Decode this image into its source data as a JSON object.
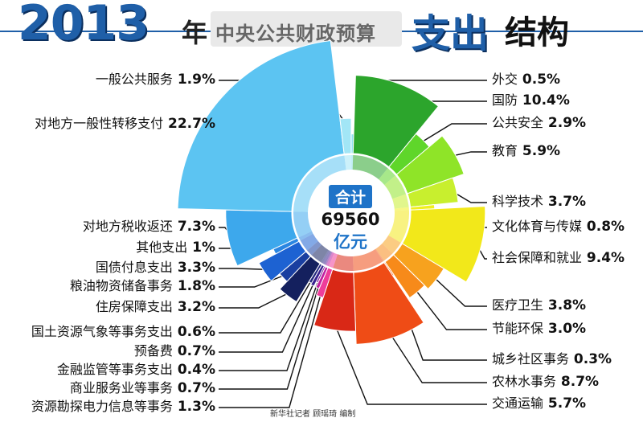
{
  "title": {
    "year": "2013",
    "nian": "年",
    "subtitle": "中央公共财政预算",
    "main_part1": "支出",
    "main_part2": "结构"
  },
  "center": {
    "label": "合计",
    "value": "69560",
    "unit": "亿元"
  },
  "credit": "新华社记者 顾瑶琦 编制",
  "chart_data": {
    "type": "pie",
    "variant": "rose-donut",
    "title": "2013年中央公共财政预算支出结构",
    "total": 69560,
    "total_unit": "亿元",
    "unit": "%",
    "slices": [
      {
        "name": "外交",
        "text": "0.5%",
        "value": 0.5,
        "color": "#8fe0f0"
      },
      {
        "name": "国防",
        "text": "10.4%",
        "value": 10.4,
        "color": "#2ca52c"
      },
      {
        "name": "公共安全",
        "text": "2.9%",
        "value": 2.9,
        "color": "#5fd62a"
      },
      {
        "name": "教育",
        "text": "5.9%",
        "value": 5.9,
        "color": "#8fe428"
      },
      {
        "name": "科学技术",
        "text": "3.7%",
        "value": 3.7,
        "color": "#c8ef2e"
      },
      {
        "name": "文化体育与传媒",
        "text": "0.8%",
        "value": 0.8,
        "color": "#f0f020"
      },
      {
        "name": "社会保障和就业",
        "text": "9.4%",
        "value": 9.4,
        "color": "#f2e81a"
      },
      {
        "name": "医疗卫生",
        "text": "3.8%",
        "value": 3.8,
        "color": "#f7a21e"
      },
      {
        "name": "节能环保",
        "text": "3.0%",
        "value": 3.0,
        "color": "#f78a1a"
      },
      {
        "name": "城乡社区事务",
        "text": "0.3%",
        "value": 0.3,
        "color": "#f26a1a"
      },
      {
        "name": "农林水事务",
        "text": "8.7%",
        "value": 8.7,
        "color": "#ef4c16"
      },
      {
        "name": "交通运输",
        "text": "5.7%",
        "value": 5.7,
        "color": "#d92816"
      },
      {
        "name": "资源勘探电力信息等事务",
        "text": "1.3%",
        "value": 1.3,
        "color": "#ee3d9a"
      },
      {
        "name": "商业服务业等事务",
        "text": "0.7%",
        "value": 0.7,
        "color": "#c020a0"
      },
      {
        "name": "金融监管等事务支出",
        "text": "0.4%",
        "value": 0.4,
        "color": "#7a1f9a"
      },
      {
        "name": "预备费",
        "text": "0.7%",
        "value": 0.7,
        "color": "#3a2390"
      },
      {
        "name": "国土资源气象等事务支出",
        "text": "0.6%",
        "value": 0.6,
        "color": "#262a80"
      },
      {
        "name": "住房保障支出",
        "text": "3.2%",
        "value": 3.2,
        "color": "#14205e"
      },
      {
        "name": "粮油物资储备事务",
        "text": "1.8%",
        "value": 1.8,
        "color": "#1a3fa0"
      },
      {
        "name": "国债付息支出",
        "text": "3.3%",
        "value": 3.3,
        "color": "#1d62d2"
      },
      {
        "name": "其他支出",
        "text": "1%",
        "value": 1.0,
        "color": "#2a86e2"
      },
      {
        "name": "对地方税收返还",
        "text": "7.3%",
        "value": 7.3,
        "color": "#3da8ec"
      },
      {
        "name": "对地方一般性转移支付",
        "text": "22.7%",
        "value": 22.7,
        "color": "#5cc4f2"
      },
      {
        "name": "一般公共服务",
        "text": "1.9%",
        "value": 1.9,
        "color": "#a2e6f6"
      }
    ]
  }
}
